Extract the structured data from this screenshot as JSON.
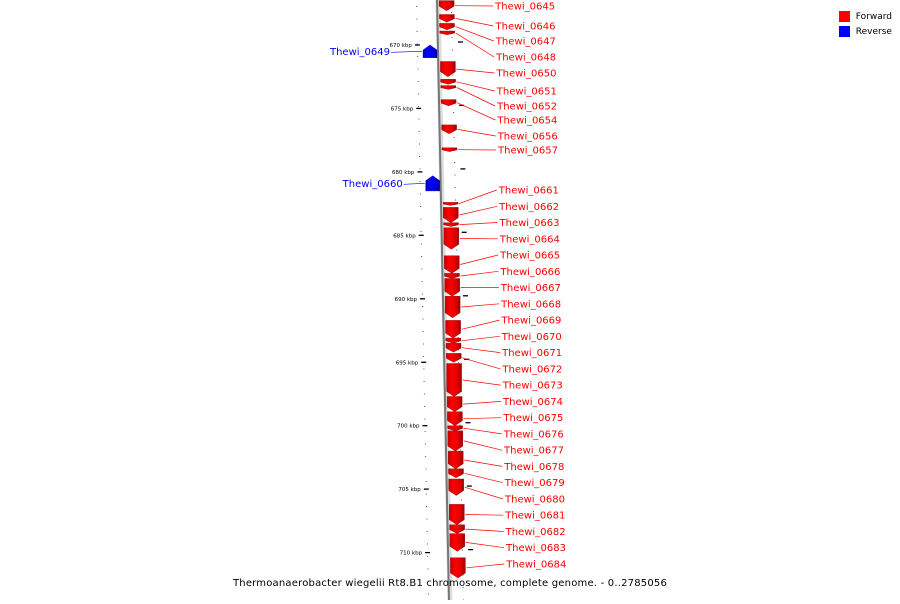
{
  "legend": {
    "forward": {
      "label": "Forward",
      "color": "#ff0000"
    },
    "reverse": {
      "label": "Reverse",
      "color": "#0000ff"
    }
  },
  "caption": "Thermoanaerobacter wiegelii Rt8.B1 chromosome, complete genome. - 0..2785056",
  "scale": {
    "unit": "kbp",
    "ticks": [
      {
        "label": "670 kbp",
        "kbp": 670
      },
      {
        "label": "675 kbp",
        "kbp": 675
      },
      {
        "label": "680 kbp",
        "kbp": 680
      },
      {
        "label": "685 kbp",
        "kbp": 685
      },
      {
        "label": "690 kbp",
        "kbp": 690
      },
      {
        "label": "695 kbp",
        "kbp": 695
      },
      {
        "label": "700 kbp",
        "kbp": 700
      },
      {
        "label": "705 kbp",
        "kbp": 705
      },
      {
        "label": "710 kbp",
        "kbp": 710
      }
    ]
  },
  "genes": [
    {
      "label": "Thewi_0645",
      "strand": "forward",
      "start_kbp": 666.5,
      "end_kbp": 667.3
    },
    {
      "label": "Thewi_0646",
      "strand": "forward",
      "start_kbp": 667.6,
      "end_kbp": 668.2
    },
    {
      "label": "Thewi_0647",
      "strand": "forward",
      "start_kbp": 668.3,
      "end_kbp": 668.8
    },
    {
      "label": "Thewi_0648",
      "strand": "forward",
      "start_kbp": 668.9,
      "end_kbp": 669.2
    },
    {
      "label": "Thewi_0649",
      "strand": "reverse",
      "start_kbp": 670.0,
      "end_kbp": 671.0
    },
    {
      "label": "Thewi_0650",
      "strand": "forward",
      "start_kbp": 671.3,
      "end_kbp": 672.5
    },
    {
      "label": "Thewi_0651",
      "strand": "forward",
      "start_kbp": 672.7,
      "end_kbp": 673.1
    },
    {
      "label": "Thewi_0652",
      "strand": "forward",
      "start_kbp": 673.2,
      "end_kbp": 673.5
    },
    {
      "label": "Thewi_0654",
      "strand": "forward",
      "start_kbp": 674.3,
      "end_kbp": 674.8
    },
    {
      "label": "Thewi_0656",
      "strand": "forward",
      "start_kbp": 676.3,
      "end_kbp": 677.0
    },
    {
      "label": "Thewi_0657",
      "strand": "forward",
      "start_kbp": 678.1,
      "end_kbp": 678.4
    },
    {
      "label": "Thewi_0660",
      "strand": "reverse",
      "start_kbp": 680.3,
      "end_kbp": 681.5
    },
    {
      "label": "Thewi_0661",
      "strand": "forward",
      "start_kbp": 682.4,
      "end_kbp": 682.6
    },
    {
      "label": "Thewi_0662",
      "strand": "forward",
      "start_kbp": 682.8,
      "end_kbp": 684.0
    },
    {
      "label": "Thewi_0663",
      "strand": "forward",
      "start_kbp": 684.0,
      "end_kbp": 684.3
    },
    {
      "label": "Thewi_0664",
      "strand": "forward",
      "start_kbp": 684.4,
      "end_kbp": 686.1
    },
    {
      "label": "Thewi_0665",
      "strand": "forward",
      "start_kbp": 686.6,
      "end_kbp": 688.0
    },
    {
      "label": "Thewi_0666",
      "strand": "forward",
      "start_kbp": 688.0,
      "end_kbp": 688.4
    },
    {
      "label": "Thewi_0667",
      "strand": "forward",
      "start_kbp": 688.4,
      "end_kbp": 689.8
    },
    {
      "label": "Thewi_0668",
      "strand": "forward",
      "start_kbp": 689.8,
      "end_kbp": 691.5
    },
    {
      "label": "Thewi_0669",
      "strand": "forward",
      "start_kbp": 691.7,
      "end_kbp": 693.1
    },
    {
      "label": "Thewi_0670",
      "strand": "forward",
      "start_kbp": 693.1,
      "end_kbp": 693.5
    },
    {
      "label": "Thewi_0671",
      "strand": "forward",
      "start_kbp": 693.5,
      "end_kbp": 694.2
    },
    {
      "label": "Thewi_0672",
      "strand": "forward",
      "start_kbp": 694.3,
      "end_kbp": 695.0
    },
    {
      "label": "Thewi_0673",
      "strand": "forward",
      "start_kbp": 695.1,
      "end_kbp": 697.7
    },
    {
      "label": "Thewi_0674",
      "strand": "forward",
      "start_kbp": 697.7,
      "end_kbp": 698.9
    },
    {
      "label": "Thewi_0675",
      "strand": "forward",
      "start_kbp": 698.9,
      "end_kbp": 700.0
    },
    {
      "label": "Thewi_0676",
      "strand": "forward",
      "start_kbp": 700.0,
      "end_kbp": 700.4
    },
    {
      "label": "Thewi_0677",
      "strand": "forward",
      "start_kbp": 700.4,
      "end_kbp": 702.0
    },
    {
      "label": "Thewi_0678",
      "strand": "forward",
      "start_kbp": 702.0,
      "end_kbp": 703.4
    },
    {
      "label": "Thewi_0679",
      "strand": "forward",
      "start_kbp": 703.4,
      "end_kbp": 704.1
    },
    {
      "label": "Thewi_0680",
      "strand": "forward",
      "start_kbp": 704.2,
      "end_kbp": 705.5
    },
    {
      "label": "Thewi_0681",
      "strand": "forward",
      "start_kbp": 706.2,
      "end_kbp": 707.8
    },
    {
      "label": "Thewi_0682",
      "strand": "forward",
      "start_kbp": 707.8,
      "end_kbp": 708.5
    },
    {
      "label": "Thewi_0683",
      "strand": "forward",
      "start_kbp": 708.5,
      "end_kbp": 709.9
    },
    {
      "label": "Thewi_0684",
      "strand": "forward",
      "start_kbp": 710.4,
      "end_kbp": 712.0
    }
  ]
}
